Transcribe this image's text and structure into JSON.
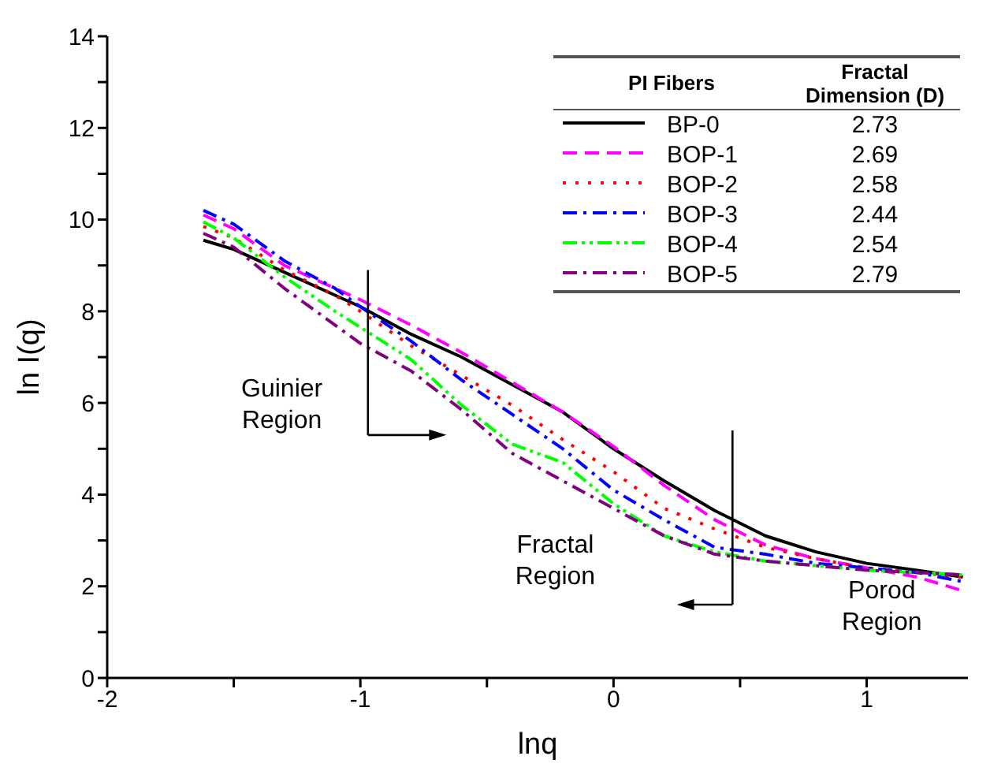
{
  "chart_data": {
    "type": "line",
    "xlabel": "lnq",
    "ylabel": "ln I(q)",
    "legend_title": "PI Fibers",
    "legend": "top right",
    "marker": "none",
    "xlim": [
      -2,
      1.4
    ],
    "xticks": [
      -2,
      {
        "value": -1.5,
        "label": null
      },
      -1,
      {
        "value": -0.5,
        "label": null
      },
      0,
      {
        "value": 0.5,
        "label": null
      },
      1
    ],
    "ylim": [
      0,
      14
    ],
    "yticks": [
      0,
      {
        "value": 1,
        "label": null
      },
      2,
      {
        "value": 3,
        "label": null
      },
      4,
      {
        "value": 5,
        "label": null
      },
      6,
      {
        "value": 7,
        "label": null
      },
      8,
      {
        "value": 9,
        "label": null
      },
      10,
      {
        "value": 11,
        "label": null
      },
      12,
      {
        "value": 13,
        "label": null
      },
      14
    ],
    "x": [
      -1.62,
      -1.5,
      -1.3,
      -1.1,
      -1.0,
      -0.8,
      -0.6,
      -0.4,
      -0.2,
      0,
      0.2,
      0.4,
      0.6,
      0.8,
      1.0,
      1.2,
      1.38
    ],
    "series": [
      {
        "name": "BP-0",
        "color": "#000000",
        "line_style": "solid",
        "values": [
          9.55,
          9.35,
          8.85,
          8.35,
          8.1,
          7.5,
          7.0,
          6.4,
          5.8,
          5.0,
          4.3,
          3.65,
          3.1,
          2.75,
          2.5,
          2.35,
          2.2
        ]
      },
      {
        "name": "BOP-1",
        "color": "#ff00ff",
        "line_style": "dashed",
        "values": [
          10.1,
          9.8,
          9.0,
          8.5,
          8.25,
          7.7,
          7.1,
          6.45,
          5.8,
          5.05,
          4.2,
          3.45,
          2.9,
          2.6,
          2.4,
          2.2,
          1.9
        ]
      },
      {
        "name": "BOP-2",
        "color": "#ff0000",
        "line_style": "dotted",
        "values": [
          9.85,
          9.6,
          8.9,
          8.35,
          8.0,
          7.25,
          6.6,
          5.95,
          5.2,
          4.5,
          3.7,
          3.25,
          2.85,
          2.6,
          2.4,
          2.3,
          2.2
        ]
      },
      {
        "name": "BOP-3",
        "color": "#0000ff",
        "line_style": "dashdot",
        "values": [
          10.2,
          9.9,
          9.1,
          8.5,
          8.1,
          7.35,
          6.5,
          5.75,
          5.0,
          4.1,
          3.45,
          2.85,
          2.7,
          2.5,
          2.4,
          2.3,
          2.1
        ]
      },
      {
        "name": "BOP-4",
        "color": "#00ff00",
        "line_style": "dashdotdot",
        "values": [
          9.95,
          9.6,
          8.75,
          8.0,
          7.65,
          6.95,
          5.95,
          5.1,
          4.7,
          3.8,
          3.1,
          2.75,
          2.55,
          2.45,
          2.35,
          2.3,
          2.25
        ]
      },
      {
        "name": "BOP-5",
        "color": "#800080",
        "line_style": "dashdot",
        "values": [
          9.7,
          9.4,
          8.5,
          7.7,
          7.3,
          6.7,
          5.85,
          4.9,
          4.3,
          3.7,
          3.1,
          2.7,
          2.55,
          2.45,
          2.35,
          2.3,
          2.25
        ]
      }
    ],
    "annotations": [
      "Fractal Dimension (D)",
      "2.73",
      "2.69",
      "2.58",
      "2.44",
      "2.54",
      "2.79",
      "Guinier Region",
      "Fractal Region",
      "Porod Region"
    ]
  }
}
